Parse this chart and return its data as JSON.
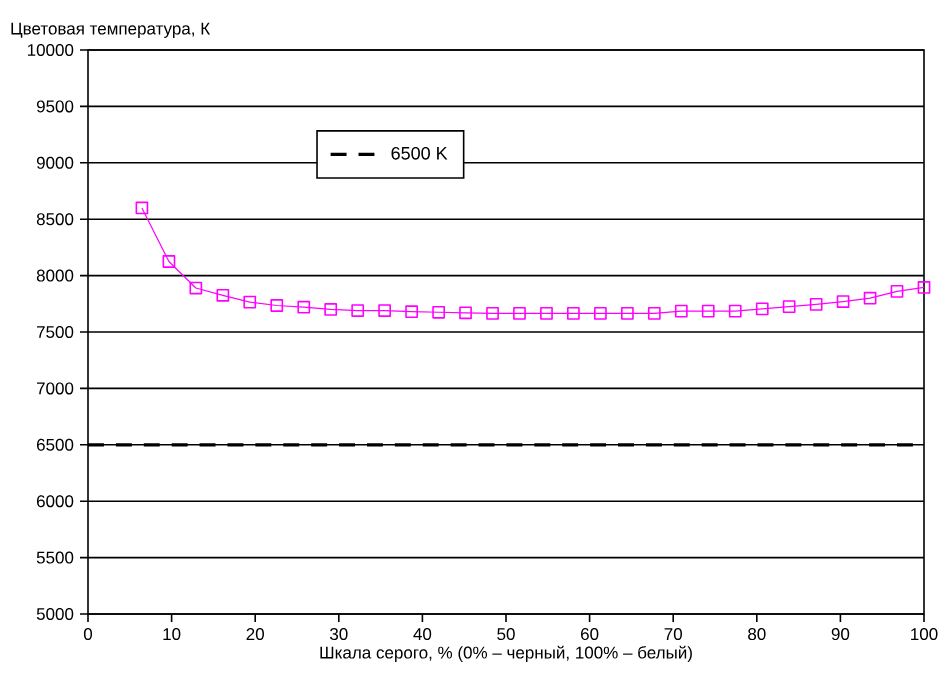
{
  "chart_data": {
    "type": "line",
    "ylabel": "Цветовая температура, К",
    "xlabel": "Шкала серого, % (0% – черный, 100% – белый)",
    "series": [
      {
        "color": "#ff00ff",
        "x": [
          6.45,
          9.68,
          12.9,
          16.13,
          19.35,
          22.58,
          25.81,
          29.03,
          32.26,
          35.48,
          38.71,
          41.94,
          45.16,
          48.39,
          51.61,
          54.84,
          58.06,
          61.29,
          64.52,
          67.74,
          70.97,
          74.19,
          77.42,
          80.65,
          83.87,
          87.1,
          90.32,
          93.55,
          96.77,
          100
        ],
        "values": [
          8600,
          8125,
          7890,
          7825,
          7765,
          7735,
          7720,
          7700,
          7690,
          7690,
          7680,
          7675,
          7670,
          7665,
          7665,
          7665,
          7665,
          7665,
          7665,
          7665,
          7685,
          7685,
          7685,
          7705,
          7725,
          7745,
          7770,
          7800,
          7860,
          7895
        ]
      }
    ],
    "ref_lines": [
      {
        "axis": "y",
        "value": 6500,
        "label": "6500 K",
        "color": "#000000",
        "line_style": "dashed"
      }
    ],
    "xlim": [
      0,
      100
    ],
    "xticks": [
      0,
      10,
      20,
      30,
      40,
      50,
      60,
      70,
      80,
      90,
      100
    ],
    "ylim": [
      5000,
      10000
    ],
    "yticks": [
      5000,
      5500,
      6000,
      6500,
      7000,
      7500,
      8000,
      8500,
      9000,
      9500,
      10000
    ],
    "grid": "y",
    "legend": "top",
    "marker": "square",
    "line_style": "solid"
  }
}
